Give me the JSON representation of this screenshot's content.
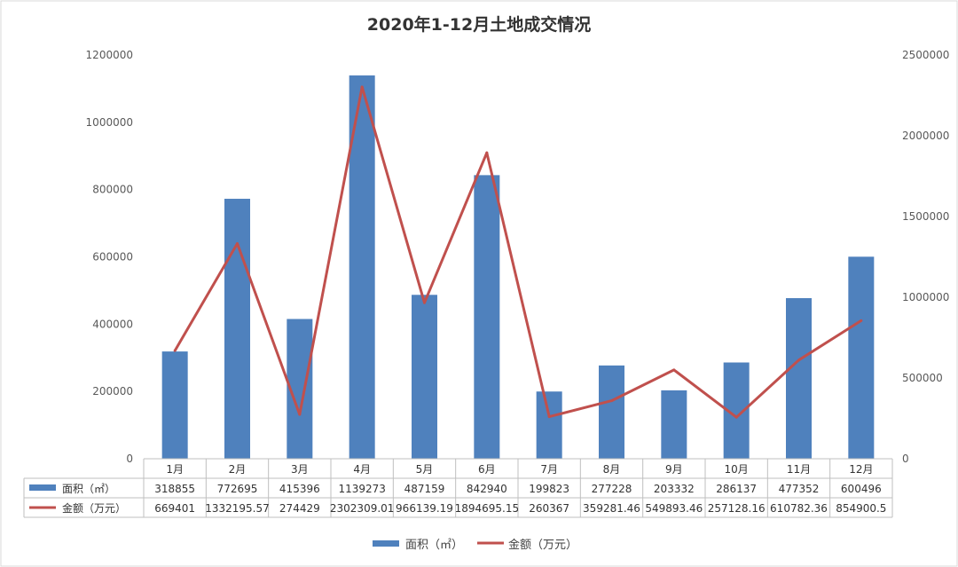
{
  "chart_data": {
    "type": "bar",
    "title": "2020年1-12月土地成交情况",
    "categories": [
      "1月",
      "2月",
      "3月",
      "4月",
      "5月",
      "6月",
      "7月",
      "8月",
      "9月",
      "10月",
      "11月",
      "12月"
    ],
    "series": [
      {
        "name": "面积（㎡）",
        "kind": "bar",
        "axis": "left",
        "color": "#4F81BD",
        "values": [
          318855,
          772695,
          415396,
          1139273,
          487159,
          842940,
          199823,
          277228,
          203332,
          286137,
          477352,
          600496
        ],
        "labels": [
          "318855",
          "772695",
          "415396",
          "1139273",
          "487159",
          "842940",
          "199823",
          "277228",
          "203332",
          "286137",
          "477352",
          "600496"
        ]
      },
      {
        "name": "金额（万元）",
        "kind": "line",
        "axis": "right",
        "color": "#C0504D",
        "values": [
          669401,
          1332195.57,
          274429,
          2302309.01,
          966139.19,
          1894695.15,
          260367,
          359281.46,
          549893.46,
          257128.16,
          610782.36,
          854900.5
        ],
        "labels": [
          "669401",
          "1332195.57",
          "274429",
          "2302309.01",
          "966139.19",
          "1894695.15",
          "260367",
          "359281.46",
          "549893.46",
          "257128.16",
          "610782.36",
          "854900.5"
        ]
      }
    ],
    "y_left": {
      "ylim": [
        0,
        1200000
      ],
      "ticks": [
        "0",
        "200000",
        "400000",
        "600000",
        "800000",
        "1000000",
        "1200000"
      ]
    },
    "y_right": {
      "ylim": [
        0,
        2500000
      ],
      "ticks": [
        "0",
        "500000",
        "1000000",
        "1500000",
        "2000000",
        "2500000"
      ]
    },
    "data_table": true,
    "legend": {
      "placement": "bottom"
    },
    "grid": false
  }
}
